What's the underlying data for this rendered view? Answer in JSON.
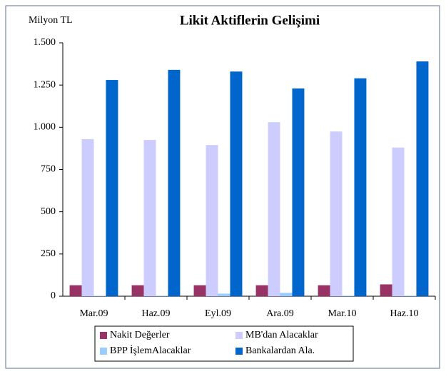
{
  "chart_data": {
    "type": "bar",
    "title": "Likit Aktiflerin Gelişimi",
    "unit_label": "Milyon TL",
    "categories": [
      "Mar.09",
      "Haz.09",
      "Eyl.09",
      "Ara.09",
      "Mar.10",
      "Haz.10"
    ],
    "series": [
      {
        "name": "Nakit Değerler",
        "color": "#993366",
        "values": [
          65,
          65,
          65,
          65,
          65,
          70
        ]
      },
      {
        "name": "MB'dan Alacaklar",
        "color": "#ccccff",
        "values": [
          930,
          925,
          895,
          1030,
          975,
          880
        ]
      },
      {
        "name": "BPP İşlemAlacaklar",
        "color": "#99ccff",
        "values": [
          2,
          3,
          15,
          20,
          3,
          3
        ]
      },
      {
        "name": "Bankalardan Ala.",
        "color": "#0066cc",
        "values": [
          1280,
          1340,
          1330,
          1230,
          1290,
          1390
        ]
      }
    ],
    "ylim": [
      0,
      1500
    ],
    "yticks": [
      0,
      250,
      500,
      750,
      {
        "value": 1000,
        "label": "1.000"
      },
      {
        "value": 1250,
        "label": "1.250"
      },
      {
        "value": 1500,
        "label": "1.500"
      }
    ],
    "grid": false
  }
}
